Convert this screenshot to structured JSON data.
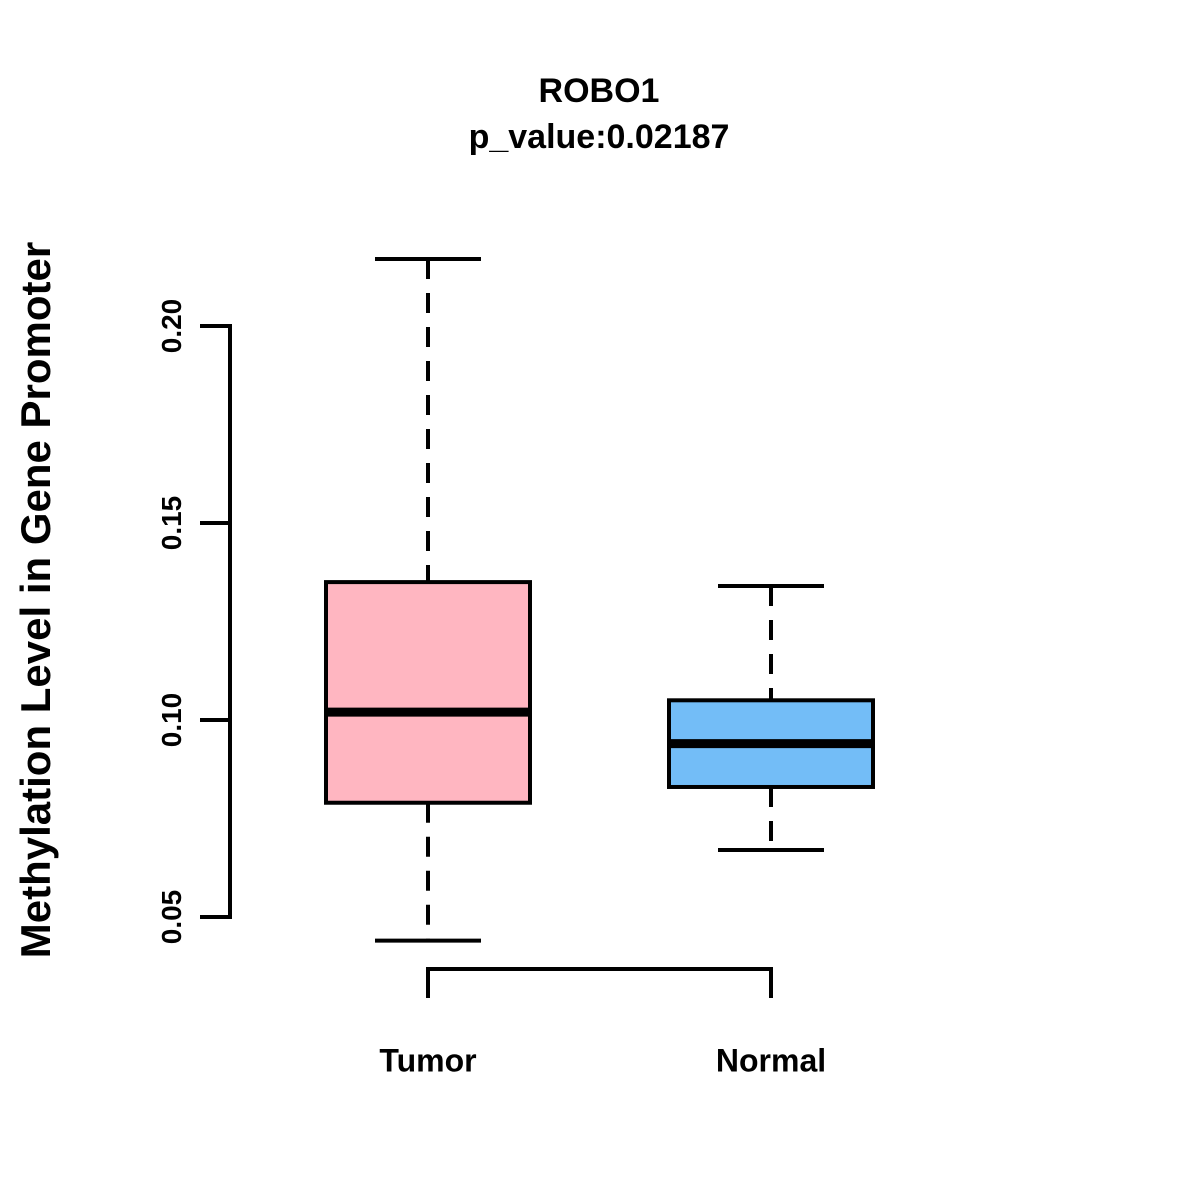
{
  "header": {
    "title": "ROBO1",
    "subtitle": "p_value:0.02187"
  },
  "y_axis": {
    "label": "Methylation Level in Gene Promoter",
    "tick_labels": [
      "0.05",
      "0.10",
      "0.15",
      "0.20"
    ],
    "tick_values": [
      0.05,
      0.1,
      0.15,
      0.2
    ]
  },
  "x_axis": {
    "categories": [
      "Tumor",
      "Normal"
    ]
  },
  "colors": {
    "tumor_fill": "#FFB6C1",
    "normal_fill": "#73BDF7",
    "stroke": "#000000",
    "background": "#FFFFFF"
  },
  "chart_data": {
    "type": "boxplot",
    "title": "ROBO1",
    "subtitle": "p_value:0.02187",
    "xlabel": "",
    "ylabel": "Methylation Level in Gene Promoter",
    "axis_range": [
      0.05,
      0.2
    ],
    "yticks": [
      0.05,
      0.1,
      0.15,
      0.2
    ],
    "grid": false,
    "legend": "none",
    "categories": [
      "Tumor",
      "Normal"
    ],
    "series": [
      {
        "name": "Tumor",
        "fill_color": "#FFB6C1",
        "whisker_low": 0.044,
        "q1": 0.079,
        "median": 0.102,
        "q3": 0.135,
        "whisker_high": 0.217
      },
      {
        "name": "Normal",
        "fill_color": "#73BDF7",
        "whisker_low": 0.067,
        "q1": 0.083,
        "median": 0.094,
        "q3": 0.105,
        "whisker_high": 0.134
      }
    ],
    "whisker_style": "dashed",
    "border_color": "#000000"
  }
}
